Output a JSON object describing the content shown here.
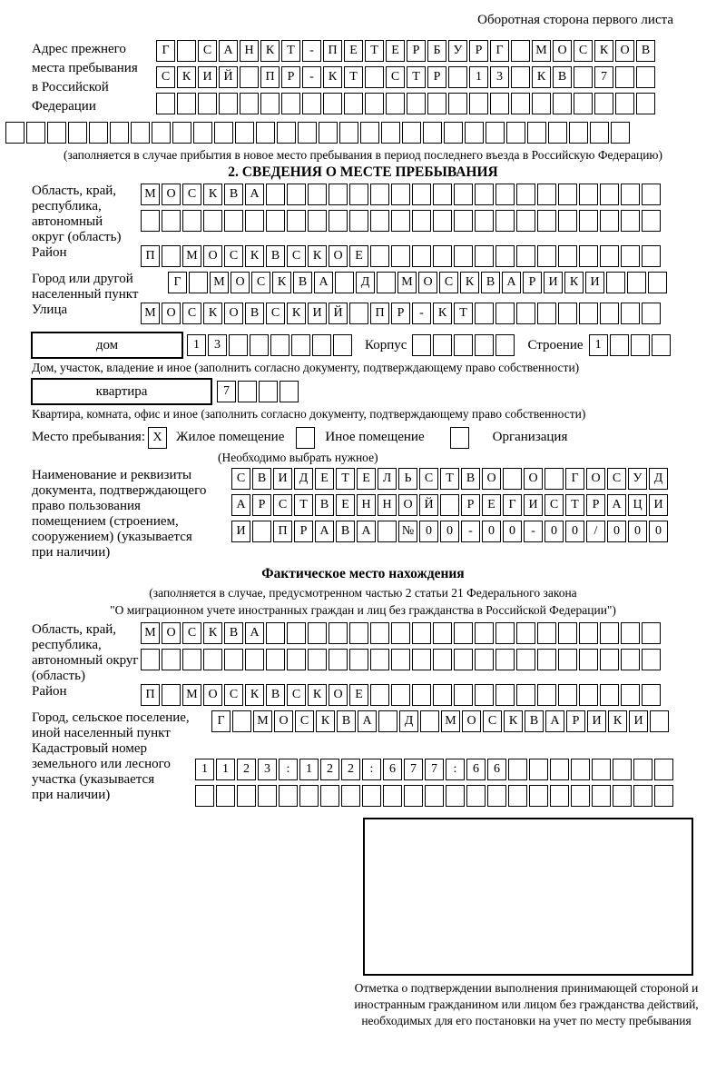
{
  "header": {
    "note": "Оборотная сторона первого листа"
  },
  "prev_address": {
    "label_lines": [
      "Адрес прежнего",
      "места пребывания",
      "в Российской",
      "Федерации"
    ],
    "rows": [
      "Г САНКТ-ПЕТЕРБУРГ МОСКОВ",
      "СКИЙ ПР-КТ СТР 13 КВ 7  ",
      "                        "
    ],
    "overflow_row": "                              ",
    "caption": "(заполняется в случае прибытия в новое место пребывания в период последнего въезда в Российскую Федерацию)"
  },
  "section2": {
    "title": "2. СВЕДЕНИЯ О МЕСТЕ ПРЕБЫВАНИЯ",
    "oblast": {
      "label_lines": [
        "Область, край,",
        "республика,",
        "автономный",
        "округ (область)"
      ],
      "rows": [
        "МОСКВА                   ",
        "                         "
      ]
    },
    "raion": {
      "label": "Район",
      "row": "П МОСКВСКОЕ              "
    },
    "gorod": {
      "label_lines": [
        "Город или другой",
        "населенный пункт"
      ],
      "row": "Г МОСКВА Д МОСКВАРИКИ   "
    },
    "ulitsa": {
      "label": "Улица",
      "row": "МОСКОВСКИЙ ПР-КТ         "
    },
    "dom": {
      "box_label": "дом",
      "cells": "13      ",
      "korpus_label": "Корпус",
      "korpus_cells": "     ",
      "stroenie_label": "Строение",
      "stroenie_cells": "1   ",
      "caption": "Дом, участок, владение и иное (заполнить согласно документу, подтверждающему право собственности)"
    },
    "kvartira": {
      "box_label": "квартира",
      "cells": "7   ",
      "caption": "Квартира, комната, офис и иное (заполнить согласно документу, подтверждающему право собственности)"
    },
    "mesto": {
      "label": "Место пребывания:",
      "options": [
        {
          "check": "X",
          "label": "Жилое помещение"
        },
        {
          "check": "",
          "label": "Иное помещение"
        },
        {
          "check": "",
          "label": "Организация"
        }
      ],
      "caption": "(Необходимо выбрать нужное)"
    },
    "doc": {
      "label_lines": [
        "Наименование и реквизиты",
        "документа, подтверждающего",
        "право пользования",
        "помещением (строением,",
        "сооружением) (указывается",
        "при наличии)"
      ],
      "rows": [
        "СВИДЕТЕЛЬСТВО О ГОСУД",
        "АРСТВЕННОЙ РЕГИСТРАЦИ",
        "И ПРАВА №00-00-00/000"
      ]
    }
  },
  "fact": {
    "title": "Фактическое место нахождения",
    "caption_lines": [
      "(заполняется в случае, предусмотренном частью 2 статьи 21 Федерального закона",
      "\"О миграционном учете иностранных граждан и лиц без гражданства в Российской Федерации\")"
    ],
    "oblast": {
      "label_lines": [
        "Область, край,",
        "республика,",
        "автономный округ",
        "(область)"
      ],
      "rows": [
        "МОСКВА                   ",
        "                         "
      ]
    },
    "raion": {
      "label": "Район",
      "row": "П МОСКВСКОЕ              "
    },
    "gorod": {
      "label_lines": [
        "Город, сельское поселение,",
        "иной населенный пункт"
      ],
      "row": "Г МОСКВА Д МОСКВАРИКИ "
    },
    "kadastr": {
      "label_lines": [
        "Кадастровый номер",
        "земельного или лесного",
        "участка (указывается",
        "при наличии)"
      ],
      "rows": [
        "1123:122:677:66        ",
        "                       "
      ]
    },
    "stamp_caption": "Отметка о подтверждении выполнения принимающей стороной и иностранным гражданином или лицом без гражданства действий, необходимых для его постановки на учет по месту пребывания"
  }
}
